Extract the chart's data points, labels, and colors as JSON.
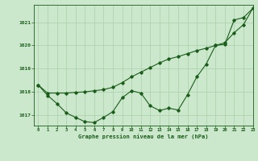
{
  "background_color": "#cce8cc",
  "line_color": "#1a5c1a",
  "grid_color": "#aacfaa",
  "xlabel": "Graphe pression niveau de la mer (hPa)",
  "xlim": [
    -0.5,
    23
  ],
  "ylim": [
    1016.55,
    1021.75
  ],
  "yticks": [
    1017,
    1018,
    1019,
    1020,
    1021
  ],
  "xticks": [
    0,
    1,
    2,
    3,
    4,
    5,
    6,
    7,
    8,
    9,
    10,
    11,
    12,
    13,
    14,
    15,
    16,
    17,
    18,
    19,
    20,
    21,
    22,
    23
  ],
  "series1_x": [
    0,
    1,
    2,
    3,
    4,
    5,
    6,
    7,
    8,
    9,
    10,
    11,
    12,
    13,
    14,
    15,
    16,
    17,
    18,
    19,
    20,
    21,
    22,
    23
  ],
  "series1_y": [
    1018.3,
    1017.85,
    1017.5,
    1017.1,
    1016.9,
    1016.72,
    1016.68,
    1016.9,
    1017.15,
    1017.75,
    1018.05,
    1017.95,
    1017.4,
    1017.2,
    1017.3,
    1017.22,
    1017.88,
    1018.65,
    1019.2,
    1020.0,
    1020.05,
    1021.1,
    1021.2,
    1021.6
  ],
  "series2_x": [
    0,
    1,
    2,
    3,
    4,
    5,
    6,
    7,
    8,
    9,
    10,
    11,
    12,
    13,
    14,
    15,
    16,
    17,
    18,
    19,
    20,
    21,
    22,
    23
  ],
  "series2_y": [
    1018.3,
    1017.95,
    1017.95,
    1017.95,
    1017.98,
    1018.0,
    1018.05,
    1018.1,
    1018.2,
    1018.4,
    1018.65,
    1018.85,
    1019.05,
    1019.25,
    1019.42,
    1019.52,
    1019.65,
    1019.78,
    1019.88,
    1020.0,
    1020.12,
    1020.55,
    1020.9,
    1021.6
  ]
}
